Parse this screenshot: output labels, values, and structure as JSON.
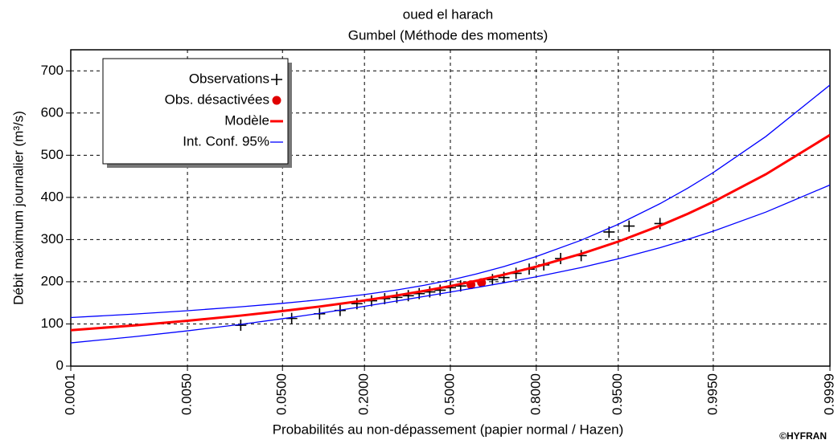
{
  "chart_data": {
    "type": "probability-plot",
    "title": "oued el harach",
    "subtitle": "Gumbel (Méthode des moments)",
    "x_label": "Probabilités au non-dépassement (papier normal / Hazen)",
    "y_label": "Débit maximum journalier (m³/s)",
    "credit": "©HYFRAN",
    "xscale": "normal-probability",
    "xlim": [
      0.0001,
      0.9999
    ],
    "xticks": [
      0.0001,
      {
        "value": 0.005,
        "label": "0.0050"
      },
      {
        "value": 0.05,
        "label": "0.0500"
      },
      {
        "value": 0.2,
        "label": "0.2000"
      },
      {
        "value": 0.5,
        "label": "0.5000"
      },
      {
        "value": 0.8,
        "label": "0.8000"
      },
      {
        "value": 0.95,
        "label": "0.9500"
      },
      {
        "value": 0.995,
        "label": "0.9950"
      },
      0.9999
    ],
    "ylim": [
      0,
      750
    ],
    "yticks": [
      0,
      100,
      200,
      300,
      400,
      500,
      600,
      700
    ],
    "grid": true,
    "legend": "upper left",
    "series": [
      {
        "name": "Observations",
        "kind": "plus",
        "color": "#000000",
        "x": [
          0.02,
          0.06,
          0.1,
          0.14,
          0.18,
          0.22,
          0.26,
          0.3,
          0.34,
          0.38,
          0.42,
          0.46,
          0.5,
          0.54,
          0.66,
          0.7,
          0.74,
          0.78,
          0.82,
          0.86,
          0.9,
          0.94,
          0.96,
          0.98
        ],
        "values": [
          97,
          113,
          124,
          132,
          148,
          155,
          160,
          163,
          167,
          172,
          176,
          180,
          186,
          190,
          205,
          210,
          220,
          230,
          240,
          255,
          262,
          318,
          332,
          338
        ]
      },
      {
        "name": "Obs. désactivées",
        "kind": "dot",
        "color": "#e00000",
        "x": [
          0.58,
          0.62
        ],
        "values": [
          193,
          198
        ]
      },
      {
        "name": "Modèle",
        "kind": "line",
        "color": "#ff0000",
        "x": [
          0.0001,
          0.001,
          0.005,
          0.02,
          0.05,
          0.1,
          0.2,
          0.3,
          0.4,
          0.5,
          0.6,
          0.7,
          0.8,
          0.9,
          0.95,
          0.98,
          0.99,
          0.995,
          0.999,
          0.9999
        ],
        "values": [
          85.1,
          96.7,
          107.5,
          119.8,
          130.6,
          141.2,
          155.7,
          167.5,
          178.5,
          189.8,
          202.2,
          216.8,
          235.8,
          266.1,
          295.3,
          333.0,
          361.3,
          389.5,
          454.7,
          548.0
        ]
      },
      {
        "name": "Int. Conf. 95%",
        "kind": "band",
        "color": "#0000ff",
        "x": [
          0.0001,
          0.001,
          0.005,
          0.02,
          0.05,
          0.1,
          0.2,
          0.3,
          0.4,
          0.5,
          0.6,
          0.7,
          0.8,
          0.9,
          0.95,
          0.98,
          0.99,
          0.995,
          0.999,
          0.9999
        ],
        "upper": [
          115.1,
          123.5,
          131.4,
          140.6,
          148.8,
          157.3,
          169.6,
          180.6,
          191.7,
          204.0,
          218.4,
          236.0,
          259.8,
          298.5,
          336.2,
          385.2,
          422.1,
          459.0,
          544.3,
          666.5
        ],
        "lower": [
          55.1,
          69.9,
          83.6,
          99.0,
          112.4,
          125.1,
          141.8,
          154.4,
          165.3,
          175.6,
          186.0,
          197.6,
          211.8,
          233.7,
          254.4,
          280.8,
          300.5,
          320.0,
          365.1,
          429.5
        ]
      }
    ]
  }
}
